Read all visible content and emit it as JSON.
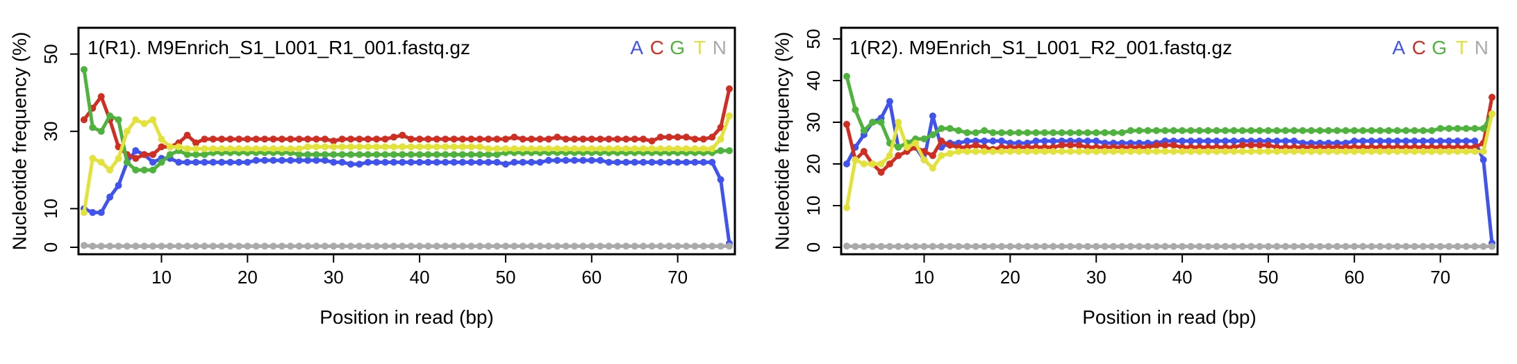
{
  "chart_data": [
    {
      "type": "line",
      "title": "1(R1). M9Enrich_S1_L001_R1_001.fastq.gz",
      "xlabel": "Position in read (bp)",
      "ylabel": "Nucleotide frequency (%)",
      "xlim": [
        1,
        76
      ],
      "ylim": [
        0,
        55
      ],
      "xticks": [
        "10",
        "20",
        "30",
        "40",
        "50",
        "60",
        "70"
      ],
      "yticks": [
        "0",
        "10",
        "30",
        "50"
      ],
      "legend": [
        "A",
        "C",
        "G",
        "T",
        "N"
      ],
      "series": [
        {
          "name": "A",
          "color": "#4153ee",
          "values": [
            10,
            9,
            9,
            13,
            16,
            22,
            25,
            24,
            22,
            23,
            23,
            22,
            22,
            22,
            22,
            22,
            22,
            22,
            22,
            22,
            22.5,
            22.5,
            22.5,
            22.5,
            22.5,
            22.5,
            22.5,
            22.5,
            22.5,
            22,
            22,
            21.5,
            21.5,
            22,
            22,
            22,
            22,
            22,
            22,
            22,
            22,
            22,
            22,
            22,
            22,
            22,
            22,
            22,
            22,
            21.5,
            22,
            22,
            22,
            22,
            22.5,
            22.5,
            22.5,
            22.5,
            22.5,
            22.5,
            22.5,
            22,
            22,
            22,
            22,
            22,
            22,
            22,
            22,
            22,
            22,
            22,
            22,
            22,
            17.5,
            1
          ]
        },
        {
          "name": "C",
          "color": "#d02d23",
          "values": [
            33,
            36,
            39,
            33,
            26,
            24,
            23,
            24,
            24,
            26,
            26,
            27,
            29,
            27,
            28,
            28,
            28,
            28,
            28,
            28,
            28,
            28,
            28,
            28,
            28,
            28,
            28,
            28,
            28,
            27.5,
            28,
            28,
            28,
            28,
            28,
            28,
            28.5,
            29,
            28,
            28,
            28,
            28,
            28,
            28,
            28,
            28,
            28,
            28,
            28,
            28,
            28.5,
            28,
            28,
            28,
            28,
            28.5,
            28,
            28,
            28,
            28,
            28,
            28,
            28,
            28,
            28,
            28,
            27.5,
            28.5,
            28.5,
            28.5,
            28.5,
            28,
            28,
            28.5,
            31,
            41
          ]
        },
        {
          "name": "G",
          "color": "#4db33c",
          "values": [
            46,
            31,
            30,
            34,
            33,
            22,
            20,
            20,
            20,
            22,
            24,
            25,
            24,
            24,
            24,
            24.5,
            24.5,
            24.5,
            24.5,
            24.5,
            24.5,
            24.5,
            24.5,
            24.5,
            24.5,
            24,
            24,
            24,
            24,
            24,
            24,
            24,
            24,
            24,
            24,
            24,
            24,
            24,
            24,
            24,
            24,
            24,
            24,
            24,
            24,
            24,
            24,
            24,
            24,
            24.5,
            24.5,
            24.5,
            24.5,
            24.5,
            24.5,
            24.5,
            24.5,
            24.5,
            24.5,
            24.5,
            24.5,
            24.5,
            24.5,
            24.5,
            24.5,
            24.5,
            24.5,
            24.5,
            24.5,
            24.5,
            24.5,
            24.5,
            24.5,
            24.5,
            25,
            25
          ]
        },
        {
          "name": "T",
          "color": "#e2e23a",
          "values": [
            9,
            23,
            22,
            20,
            23,
            30,
            33,
            32,
            33,
            28,
            26,
            26,
            25.5,
            25.5,
            25.5,
            25.5,
            25.5,
            25.5,
            25.5,
            25.5,
            25.5,
            25.5,
            25.5,
            25.5,
            25.5,
            25.5,
            26,
            26,
            26,
            26,
            26,
            26,
            26,
            26,
            26,
            26,
            26,
            26,
            26,
            26,
            26,
            26,
            26,
            26,
            26,
            26,
            26,
            25.5,
            25.5,
            25.5,
            25.5,
            25.5,
            25.5,
            25.5,
            25.5,
            25.5,
            25.5,
            25.5,
            25.5,
            25.5,
            25.5,
            25.5,
            25.5,
            25.5,
            25.5,
            25.5,
            25.5,
            25.5,
            25.5,
            25.5,
            25.5,
            25.5,
            25.5,
            25.5,
            28,
            34
          ]
        },
        {
          "name": "N",
          "color": "#aaaaaa",
          "values": [
            0.5,
            0.3,
            0.3,
            0.3,
            0.3,
            0.3,
            0.3,
            0.3,
            0.3,
            0.3,
            0.3,
            0.3,
            0.3,
            0.3,
            0.3,
            0.3,
            0.3,
            0.3,
            0.3,
            0.3,
            0.3,
            0.3,
            0.3,
            0.3,
            0.3,
            0.3,
            0.3,
            0.3,
            0.3,
            0.3,
            0.3,
            0.3,
            0.3,
            0.3,
            0.3,
            0.3,
            0.3,
            0.3,
            0.3,
            0.3,
            0.3,
            0.3,
            0.3,
            0.3,
            0.3,
            0.3,
            0.3,
            0.3,
            0.3,
            0.3,
            0.3,
            0.3,
            0.3,
            0.3,
            0.3,
            0.3,
            0.3,
            0.3,
            0.3,
            0.3,
            0.3,
            0.3,
            0.3,
            0.3,
            0.3,
            0.3,
            0.3,
            0.3,
            0.3,
            0.3,
            0.3,
            0.3,
            0.3,
            0.3,
            0.3,
            0.3
          ]
        }
      ]
    },
    {
      "type": "line",
      "title": "1(R2). M9Enrich_S1_L001_R2_001.fastq.gz",
      "xlabel": "Position in read (bp)",
      "ylabel": "Nucleotide frequency (%)",
      "xlim": [
        1,
        76
      ],
      "ylim": [
        0,
        51
      ],
      "xticks": [
        "10",
        "20",
        "30",
        "40",
        "50",
        "60",
        "70"
      ],
      "yticks": [
        "0",
        "10",
        "20",
        "30",
        "40",
        "50"
      ],
      "legend": [
        "A",
        "C",
        "G",
        "T",
        "N"
      ],
      "series": [
        {
          "name": "A",
          "color": "#4153ee",
          "values": [
            20,
            24,
            27,
            30,
            31,
            35,
            24,
            25,
            24,
            21,
            31.5,
            24,
            25,
            25,
            25.5,
            25.5,
            25.5,
            25.5,
            25.5,
            25,
            25,
            25,
            25.5,
            25.5,
            25.5,
            25.5,
            25.5,
            25.5,
            25.5,
            25.5,
            25,
            25,
            25,
            25,
            25,
            25,
            25,
            25.5,
            25.5,
            25.5,
            25.5,
            25.5,
            25.5,
            25.5,
            25.5,
            25.5,
            25.5,
            25.5,
            25.5,
            25.5,
            25.5,
            25.5,
            25.5,
            25,
            25,
            25,
            25,
            25,
            25,
            25.5,
            25.5,
            25.5,
            25.5,
            25.5,
            25.5,
            25.5,
            25.5,
            25.5,
            25.5,
            25.5,
            25.5,
            25.5,
            25.5,
            25.5,
            21,
            1
          ]
        },
        {
          "name": "C",
          "color": "#d02d23",
          "values": [
            29.5,
            21,
            23,
            20,
            18,
            20,
            22,
            23,
            24,
            23,
            22,
            25.5,
            24.5,
            24,
            24,
            24.5,
            24,
            23.5,
            24,
            24,
            24,
            24,
            24,
            24,
            24,
            24.5,
            24.5,
            24.5,
            24,
            24,
            24,
            24,
            24,
            24,
            24,
            24,
            24.5,
            24.5,
            24.5,
            24,
            24,
            24,
            24,
            24,
            24,
            24,
            24.5,
            24.5,
            24.5,
            24.5,
            24,
            24,
            24,
            24,
            24,
            24,
            24,
            24,
            24,
            24,
            24,
            24,
            24,
            24,
            24,
            24,
            24,
            24,
            24,
            24,
            24,
            24,
            24,
            24,
            25,
            36
          ]
        },
        {
          "name": "G",
          "color": "#4db33c",
          "values": [
            41,
            33,
            28,
            30,
            30,
            25,
            24,
            25,
            26,
            26,
            27,
            28.5,
            28.5,
            28,
            27.5,
            27.5,
            28,
            27.5,
            27.5,
            27.5,
            27.5,
            27.5,
            27.5,
            27.5,
            27.5,
            27.5,
            27.5,
            27.5,
            27.5,
            27.5,
            27.5,
            27.5,
            27.5,
            28,
            28,
            28,
            28,
            28,
            28,
            28,
            28,
            28,
            28,
            28,
            28,
            28,
            28,
            28,
            28,
            28,
            28,
            28,
            28,
            28,
            28,
            28,
            28,
            28,
            28,
            28,
            28,
            28,
            28,
            28,
            28,
            28,
            28,
            28,
            28,
            28.5,
            28.5,
            28.5,
            28.5,
            28.5,
            28.5,
            32
          ]
        },
        {
          "name": "T",
          "color": "#e2e23a",
          "values": [
            9.5,
            21,
            20,
            20,
            20,
            22,
            30,
            24,
            25,
            21,
            19,
            22,
            22.5,
            23,
            23,
            23,
            23,
            23,
            23,
            23,
            23,
            23,
            23,
            23,
            23,
            23,
            23,
            23,
            23,
            23,
            23,
            23,
            23,
            23,
            23,
            23,
            23,
            23,
            23,
            23,
            23,
            23,
            23,
            23,
            23,
            23,
            23,
            23,
            23,
            23,
            23,
            23,
            23,
            23,
            23,
            23,
            23,
            23,
            23,
            23,
            23,
            23,
            23,
            23,
            23,
            23,
            23,
            23,
            23,
            23,
            23,
            23,
            23,
            23,
            23,
            32
          ]
        },
        {
          "name": "N",
          "color": "#aaaaaa",
          "values": [
            0.3,
            0.2,
            0.2,
            0.2,
            0.2,
            0.2,
            0.2,
            0.2,
            0.2,
            0.2,
            0.2,
            0.2,
            0.2,
            0.2,
            0.2,
            0.2,
            0.2,
            0.2,
            0.2,
            0.2,
            0.2,
            0.2,
            0.2,
            0.2,
            0.2,
            0.2,
            0.2,
            0.2,
            0.2,
            0.2,
            0.2,
            0.2,
            0.2,
            0.2,
            0.2,
            0.2,
            0.2,
            0.2,
            0.2,
            0.2,
            0.2,
            0.2,
            0.2,
            0.2,
            0.2,
            0.2,
            0.2,
            0.2,
            0.2,
            0.2,
            0.2,
            0.2,
            0.2,
            0.2,
            0.2,
            0.2,
            0.2,
            0.2,
            0.2,
            0.2,
            0.2,
            0.2,
            0.2,
            0.2,
            0.2,
            0.2,
            0.2,
            0.2,
            0.2,
            0.2,
            0.2,
            0.2,
            0.2,
            0.2,
            0.2,
            0.2
          ]
        }
      ]
    }
  ]
}
